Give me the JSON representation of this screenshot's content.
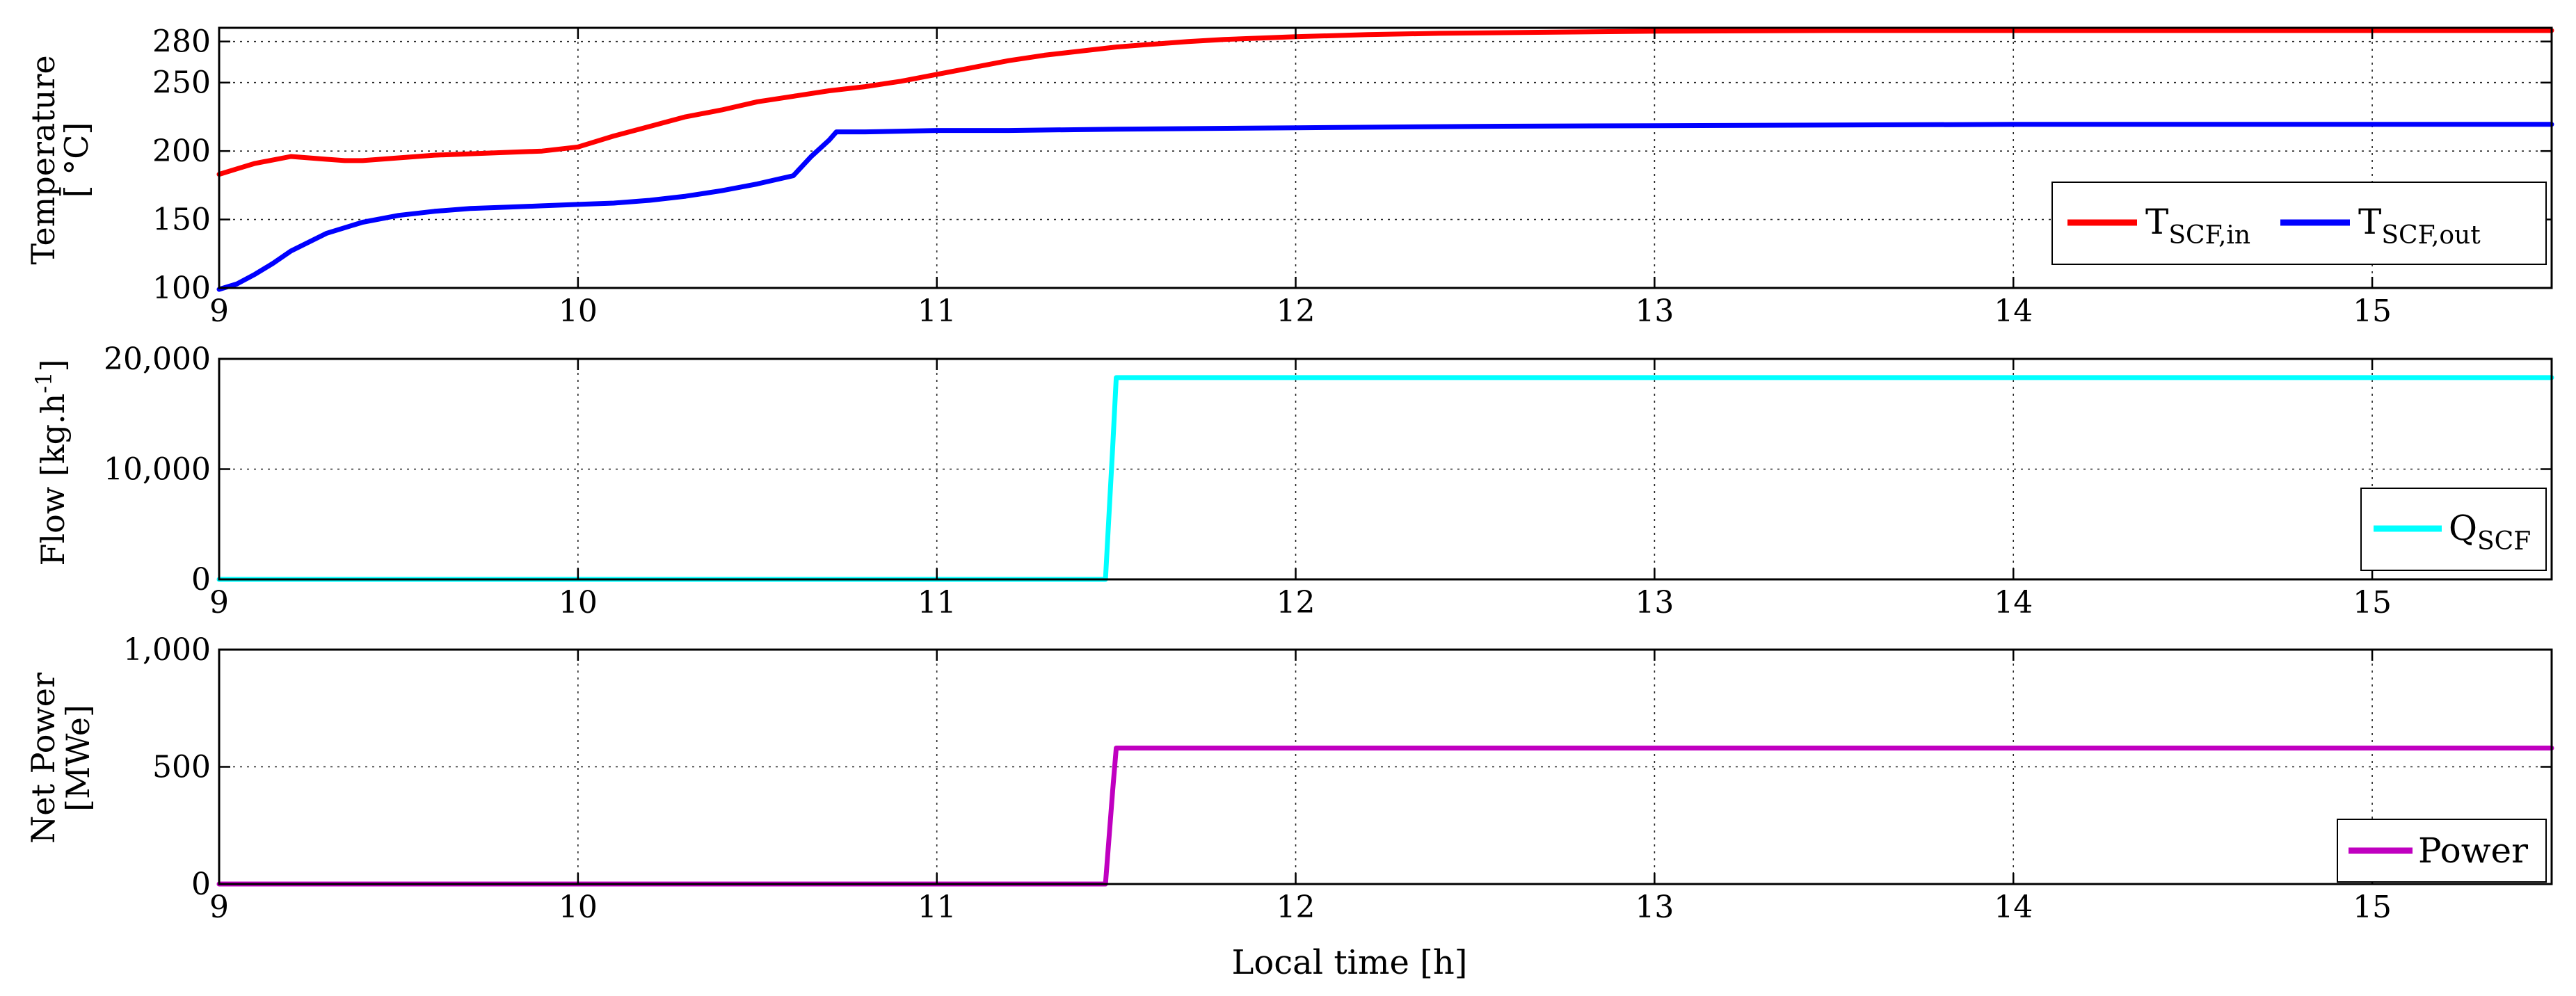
{
  "chart_data": [
    {
      "type": "line",
      "ylabel_line1": "Temperature",
      "ylabel_line2": "[ °C]",
      "xlim": [
        9,
        15.5
      ],
      "ylim": [
        100,
        290
      ],
      "xticks": [
        "9",
        "10",
        "11",
        "12",
        "13",
        "14",
        "15"
      ],
      "yticks": [
        100,
        150,
        200,
        250,
        280
      ],
      "ytick_labels": [
        "100",
        "150",
        "200",
        "250",
        "280"
      ],
      "grid": true,
      "legend_position": "bottom-right",
      "series": [
        {
          "name": "T_SCF,in",
          "name_main": "T",
          "name_sub": "SCF,in",
          "color": "#ff0000",
          "x": [
            9.0,
            9.05,
            9.1,
            9.2,
            9.25,
            9.3,
            9.35,
            9.4,
            9.5,
            9.6,
            9.7,
            9.8,
            9.9,
            10.0,
            10.1,
            10.2,
            10.3,
            10.4,
            10.5,
            10.6,
            10.7,
            10.8,
            10.9,
            11.0,
            11.1,
            11.2,
            11.3,
            11.4,
            11.5,
            11.6,
            11.7,
            11.8,
            11.9,
            12.0,
            12.2,
            12.4,
            12.6,
            12.8,
            13.0,
            13.5,
            14.0,
            14.5,
            15.0,
            15.5
          ],
          "y": [
            183,
            187,
            191,
            196,
            195,
            194,
            193,
            193,
            195,
            197,
            198,
            199,
            200,
            203,
            211,
            218,
            225,
            230,
            236,
            240,
            244,
            247,
            251,
            256,
            261,
            266,
            270,
            273,
            276,
            278,
            280,
            281.5,
            282.5,
            283.5,
            285,
            286,
            286.5,
            287,
            287.5,
            288,
            288,
            288,
            288,
            288
          ]
        },
        {
          "name": "T_SCF,out",
          "name_main": "T",
          "name_sub": "SCF,out",
          "color": "#0000ff",
          "x": [
            9.0,
            9.05,
            9.1,
            9.15,
            9.2,
            9.3,
            9.4,
            9.5,
            9.6,
            9.7,
            9.8,
            9.9,
            10.0,
            10.1,
            10.2,
            10.3,
            10.4,
            10.5,
            10.6,
            10.65,
            10.7,
            10.72,
            10.8,
            11.0,
            11.2,
            11.5,
            12.0,
            12.5,
            13.0,
            13.5,
            14.0,
            14.5,
            15.0,
            15.5
          ],
          "y": [
            99,
            103,
            110,
            118,
            127,
            140,
            148,
            153,
            156,
            158,
            159,
            160,
            161,
            162,
            164,
            167,
            171,
            176,
            182,
            196,
            208,
            214,
            214,
            215,
            215,
            216,
            217,
            218,
            218.5,
            219,
            219.5,
            219.5,
            219.5,
            219.5
          ]
        }
      ]
    },
    {
      "type": "line",
      "ylabel_main": "Flow [kg.h",
      "ylabel_sup": "-1",
      "ylabel_end": "]",
      "xlim": [
        9,
        15.5
      ],
      "ylim": [
        0,
        20000
      ],
      "xticks": [
        "9",
        "10",
        "11",
        "12",
        "13",
        "14",
        "15"
      ],
      "yticks": [
        0,
        10000,
        20000
      ],
      "ytick_labels": [
        "0",
        "10,000",
        "20,000"
      ],
      "grid": true,
      "legend_position": "bottom-right",
      "series": [
        {
          "name": "Q_SCF",
          "name_main": "Q",
          "name_sub": "SCF",
          "color": "#00ffff",
          "x": [
            9.0,
            11.47,
            11.49,
            11.5,
            15.5
          ],
          "y": [
            0,
            0,
            12000,
            18300,
            18300
          ]
        }
      ]
    },
    {
      "type": "line",
      "ylabel_line1": "Net Power",
      "ylabel_line2": "[MWe]",
      "xlabel": "Local time [h]",
      "xlim": [
        9,
        15.5
      ],
      "ylim": [
        0,
        1000
      ],
      "xticks": [
        "9",
        "10",
        "11",
        "12",
        "13",
        "14",
        "15"
      ],
      "yticks": [
        0,
        500,
        1000
      ],
      "ytick_labels": [
        "0",
        "500",
        "1,000"
      ],
      "grid": true,
      "legend_position": "bottom-right",
      "series": [
        {
          "name": "Power",
          "color": "#c000c0",
          "x": [
            9.0,
            11.47,
            11.49,
            11.5,
            15.5
          ],
          "y": [
            0,
            0,
            400,
            580,
            580
          ]
        }
      ]
    }
  ]
}
